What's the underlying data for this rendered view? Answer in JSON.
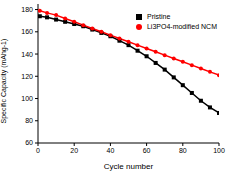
{
  "chart_data": {
    "type": "line",
    "x_label": "Cycle number",
    "y_label": "Specific Capacity (mAhg-1)",
    "xlim": [
      0,
      100
    ],
    "xticks": [
      0,
      20,
      40,
      60,
      80,
      100
    ],
    "ylim": [
      60,
      185
    ],
    "yticks": [
      60,
      80,
      100,
      120,
      140,
      160,
      180
    ],
    "grid": false,
    "legend": "upper right",
    "series": [
      {
        "name": "Pristine",
        "color": "#000000",
        "marker": "square",
        "x": [
          1,
          5,
          10,
          15,
          20,
          25,
          30,
          35,
          40,
          45,
          50,
          55,
          60,
          65,
          70,
          75,
          80,
          85,
          90,
          95,
          100
        ],
        "values": [
          174,
          173,
          171,
          169,
          167,
          165,
          162,
          159,
          156,
          152,
          148,
          143,
          138,
          132,
          126,
          119,
          112,
          105,
          98,
          92,
          87
        ]
      },
      {
        "name": "Li3PO4-modified NCM",
        "color": "#ff0000",
        "marker": "circle",
        "x": [
          1,
          5,
          10,
          15,
          20,
          25,
          30,
          35,
          40,
          45,
          50,
          55,
          60,
          65,
          70,
          75,
          80,
          85,
          90,
          95,
          100
        ],
        "values": [
          179,
          177,
          175,
          172,
          169,
          166,
          163,
          160,
          157,
          154,
          151,
          148,
          145,
          142,
          139,
          136,
          133,
          130,
          127,
          124,
          121
        ]
      }
    ]
  }
}
